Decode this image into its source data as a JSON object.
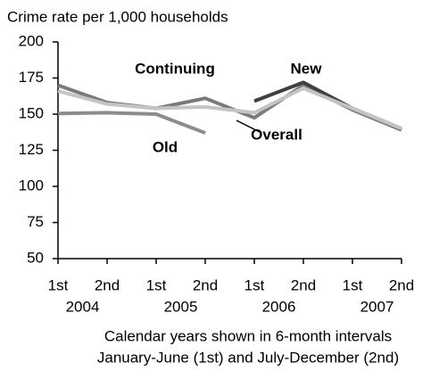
{
  "chart_data": {
    "type": "line",
    "title": "Crime rate per 1,000 households",
    "categories": [
      "1st",
      "2nd",
      "1st",
      "2nd",
      "1st",
      "2nd",
      "1st",
      "2nd"
    ],
    "years": [
      "2004",
      "2005",
      "2006",
      "2007"
    ],
    "x_label": [
      "Calendar years shown in 6-month intervals",
      "January-June (1st) and July-December (2nd)"
    ],
    "series": [
      {
        "name": "Continuing",
        "color": "#7a7a7a",
        "values": [
          170,
          158,
          154,
          161,
          147.5,
          170,
          153,
          139
        ]
      },
      {
        "name": "New",
        "color": "#404040",
        "values": [
          null,
          null,
          null,
          null,
          159,
          172,
          154,
          140
        ]
      },
      {
        "name": "Old",
        "color": "#8c8c8c",
        "values": [
          150.5,
          151,
          150,
          137,
          null,
          null,
          null,
          null
        ]
      },
      {
        "name": "Overall",
        "color": "#c4c4c4",
        "values": [
          166,
          157,
          154,
          155,
          151,
          168,
          154,
          140
        ]
      }
    ],
    "ylim": [
      50,
      200
    ],
    "yticks": [
      50,
      75,
      100,
      125,
      150,
      175,
      200
    ]
  }
}
